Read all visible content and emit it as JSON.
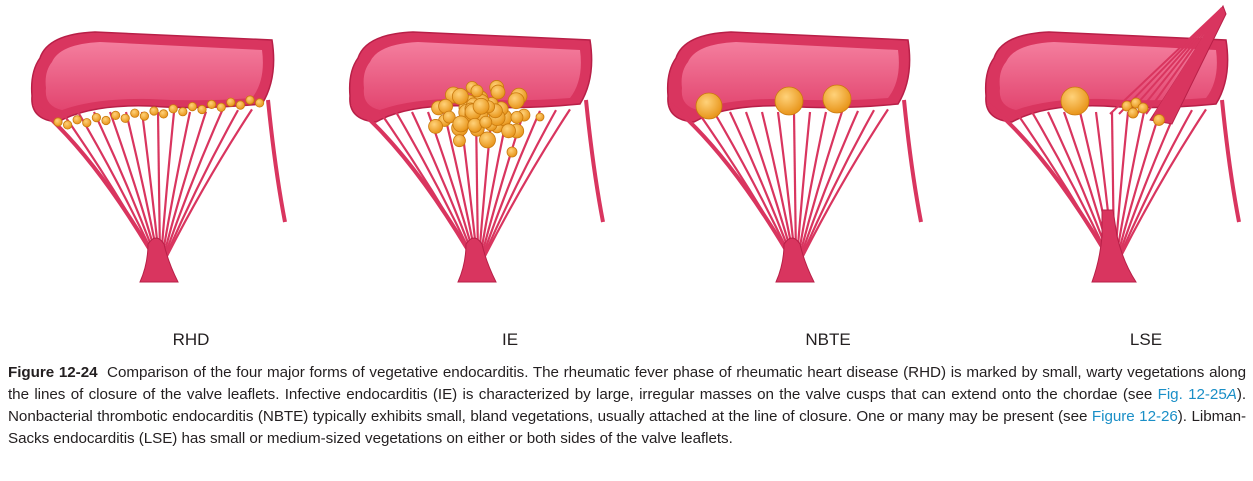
{
  "colors": {
    "tissue": "#d9355f",
    "tissue_dark": "#b81f47",
    "leaflet_fill": "#ee7b9a",
    "leaflet_inner": "#f391ab",
    "vegetation": "#f0a423",
    "vegetation_edge": "#c9790e",
    "xref": "#1a8fc7"
  },
  "panels": [
    {
      "label": "RHD"
    },
    {
      "label": "IE"
    },
    {
      "label": "NBTE"
    },
    {
      "label": "LSE"
    }
  ],
  "caption": {
    "figure_number": "Figure 12-24",
    "part1": "Comparison of the four major forms of vegetative endocarditis. The rheumatic fever phase of rheumatic heart disease (RHD) is marked by small, warty vegetations along the lines of closure of the valve leaflets. Infective endocarditis (IE) is characterized by large, irregular masses on the valve cusps that can extend onto the chordae (see ",
    "ref1_prefix": "Fig. 12-25",
    "ref1_italic": "A",
    "part2": "). Nonbacterial thrombotic endocarditis (NBTE) typically exhibits small, bland vegetations, usually attached at the line of closure. One or many may be present (see ",
    "ref2": "Figure 12-26",
    "part3": "). Libman-Sacks endocarditis (LSE) has small or medium-sized vegetations on either or both sides of the valve leaflets."
  }
}
